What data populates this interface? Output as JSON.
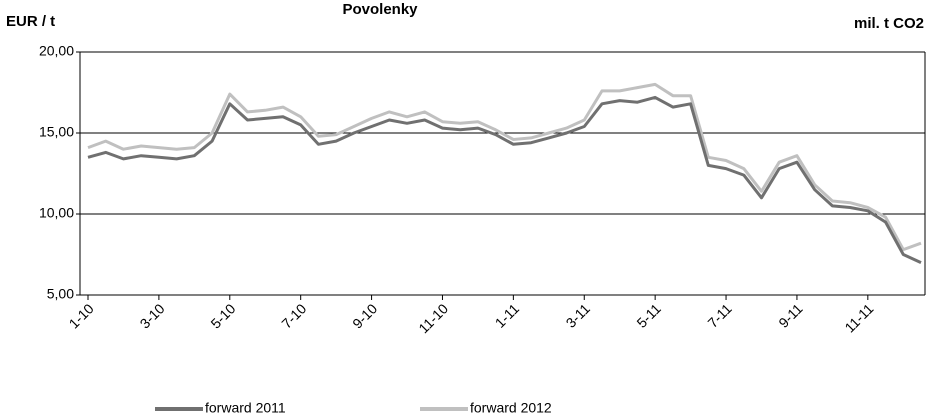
{
  "chart_data": {
    "type": "line",
    "title": "Povolenky",
    "y_label": "EUR / t",
    "y2_label": "mil. t CO2",
    "categories": [
      "1-10",
      null,
      null,
      null,
      "3-10",
      null,
      null,
      null,
      "5-10",
      null,
      null,
      null,
      "7-10",
      null,
      null,
      null,
      "9-10",
      null,
      null,
      null,
      "11-10",
      null,
      null,
      null,
      "1-11",
      null,
      null,
      null,
      "3-11",
      null,
      null,
      null,
      "5-11",
      null,
      null,
      null,
      "7-11",
      null,
      null,
      null,
      "9-11",
      null,
      null,
      null,
      "11-11",
      null,
      null,
      null
    ],
    "series": [
      {
        "name": "forward 2011",
        "color": "#707070",
        "values": [
          13.5,
          13.8,
          13.4,
          13.6,
          13.5,
          13.4,
          13.6,
          14.5,
          16.8,
          15.8,
          15.9,
          16.0,
          15.5,
          14.3,
          14.5,
          15.0,
          15.4,
          15.8,
          15.6,
          15.8,
          15.3,
          15.2,
          15.3,
          14.9,
          14.3,
          14.4,
          14.7,
          15.0,
          15.4,
          16.8,
          17.0,
          16.9,
          17.2,
          16.6,
          16.8,
          13.0,
          12.8,
          12.4,
          11.0,
          12.8,
          13.2,
          11.5,
          10.5,
          10.4,
          10.2,
          9.5,
          7.5,
          7.0
        ]
      },
      {
        "name": "forward 2012",
        "color": "#c0c0c0",
        "values": [
          14.1,
          14.5,
          14.0,
          14.2,
          14.1,
          14.0,
          14.1,
          15.0,
          17.4,
          16.3,
          16.4,
          16.6,
          16.0,
          14.8,
          14.9,
          15.4,
          15.9,
          16.3,
          16.0,
          16.3,
          15.7,
          15.6,
          15.7,
          15.2,
          14.6,
          14.7,
          15.0,
          15.3,
          15.8,
          17.6,
          17.6,
          17.8,
          18.0,
          17.3,
          17.3,
          13.5,
          13.3,
          12.8,
          11.4,
          13.2,
          13.6,
          11.8,
          10.8,
          10.7,
          10.4,
          9.8,
          7.8,
          8.2
        ]
      }
    ],
    "ylim": [
      5,
      20
    ],
    "yticks": [
      {
        "value": 5,
        "label": "5,00"
      },
      {
        "value": 10,
        "label": "10,00"
      },
      {
        "value": 15,
        "label": "15,00"
      },
      {
        "value": 20,
        "label": "20,00"
      }
    ],
    "grid": true,
    "legend": "bottom"
  }
}
